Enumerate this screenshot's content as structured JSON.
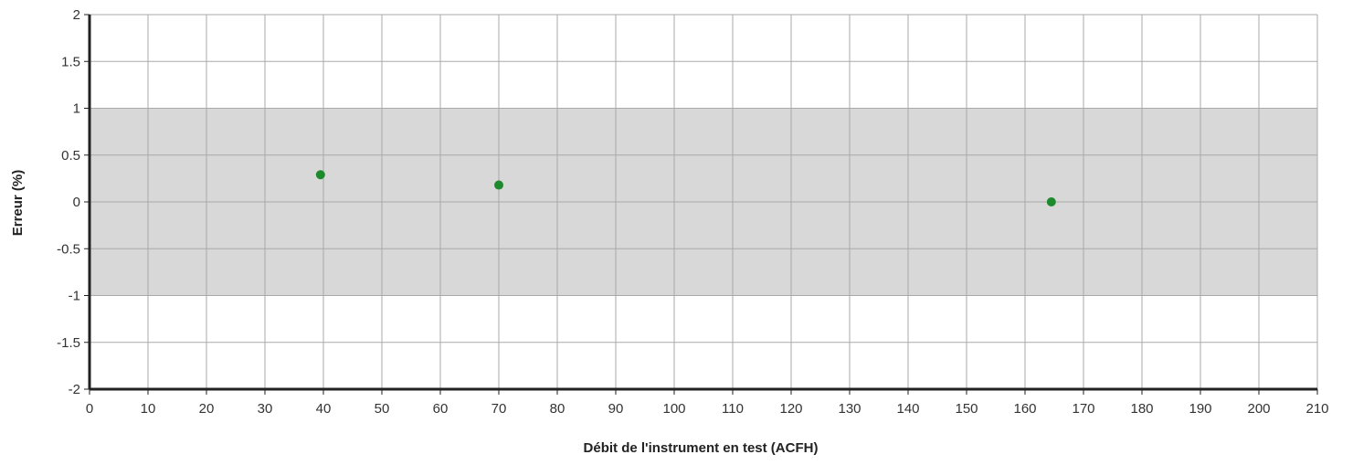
{
  "chart_data": {
    "type": "scatter",
    "title": "",
    "xlabel": "Débit de l'instrument en test (ACFH)",
    "ylabel": "Erreur (%)",
    "xlim": [
      0,
      210
    ],
    "ylim": [
      -2,
      2
    ],
    "x_ticks": [
      0,
      10,
      20,
      30,
      40,
      50,
      60,
      70,
      80,
      90,
      100,
      110,
      120,
      130,
      140,
      150,
      160,
      170,
      180,
      190,
      200,
      210
    ],
    "y_ticks": [
      2,
      1.5,
      1,
      0.5,
      0,
      -0.5,
      -1,
      -1.5,
      -2
    ],
    "y_tick_labels": [
      "2",
      "1.5",
      "1",
      "0.5",
      "0",
      "-0.5",
      "-1",
      "-1.5",
      "-2"
    ],
    "tolerance_band": [
      -1,
      1
    ],
    "grid": true,
    "series": [
      {
        "points": [
          {
            "x": 39.5,
            "y": 0.29
          },
          {
            "x": 70,
            "y": 0.18
          },
          {
            "x": 164.5,
            "y": 0.0
          }
        ]
      }
    ],
    "colors": {
      "points": "#1e8a2e",
      "band": "#d8d8d8",
      "grid": "#a9a9a9",
      "axis": "#222222"
    }
  }
}
